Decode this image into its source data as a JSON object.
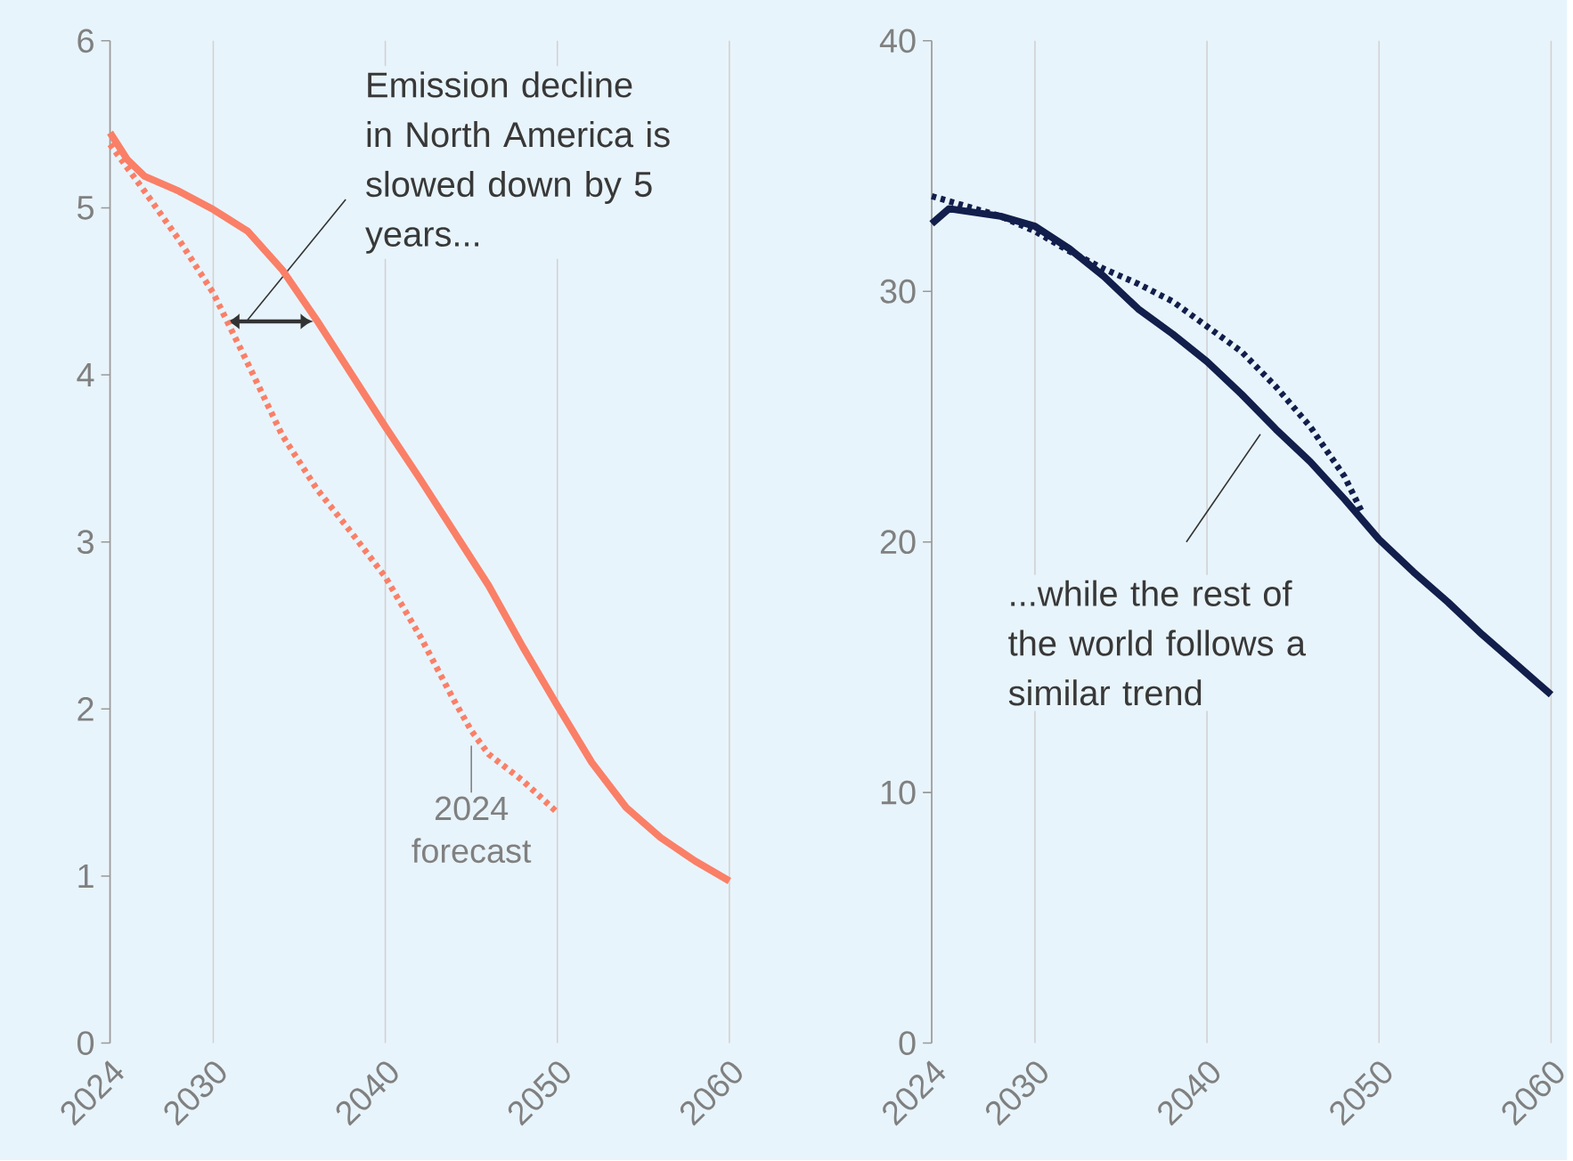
{
  "chart_data": [
    {
      "type": "line",
      "x": [
        2024,
        2025,
        2026,
        2028,
        2030,
        2032,
        2034,
        2036,
        2038,
        2040,
        2042,
        2044,
        2046,
        2048,
        2050,
        2052,
        2054,
        2056,
        2058,
        2060
      ],
      "xlim": [
        2024,
        2060
      ],
      "xticks": [
        2024,
        2030,
        2040,
        2050,
        2060
      ],
      "ylim": [
        0,
        6
      ],
      "yticks": [
        0,
        1,
        2,
        3,
        4,
        5,
        6
      ],
      "grid": "x",
      "annotations": [
        "Emission decline in North America is slowed down by 5 years..."
      ],
      "series": [
        {
          "color": "#fa7f67",
          "line_style": "solid",
          "values": [
            5.45,
            5.29,
            5.19,
            5.1,
            4.99,
            4.86,
            4.63,
            4.33,
            4.01,
            3.69,
            3.38,
            3.06,
            2.74,
            2.37,
            2.02,
            1.68,
            1.41,
            1.23,
            1.09,
            0.97
          ]
        },
        {
          "name": "2024 forecast",
          "color": "#fa7f67",
          "line_style": "dotted",
          "x": [
            2024,
            2026,
            2028,
            2030,
            2032,
            2034,
            2036,
            2038,
            2040,
            2042,
            2044,
            2045,
            2046,
            2048,
            2050
          ],
          "values": [
            5.38,
            5.1,
            4.81,
            4.49,
            4.07,
            3.64,
            3.32,
            3.06,
            2.79,
            2.44,
            2.05,
            1.87,
            1.73,
            1.57,
            1.38
          ]
        }
      ]
    },
    {
      "type": "line",
      "x": [
        2024,
        2025,
        2028,
        2030,
        2032,
        2034,
        2036,
        2038,
        2040,
        2042,
        2044,
        2046,
        2048,
        2050,
        2052,
        2054,
        2056,
        2058,
        2060
      ],
      "xlim": [
        2024,
        2060
      ],
      "xticks": [
        2024,
        2030,
        2040,
        2050,
        2060
      ],
      "ylim": [
        0,
        40
      ],
      "yticks": [
        0,
        10,
        20,
        30,
        40
      ],
      "grid": "x",
      "annotations": [
        "...while the rest of the world  follows a similar trend"
      ],
      "series": [
        {
          "color": "#121e4b",
          "line_style": "solid",
          "values": [
            32.7,
            33.3,
            33.0,
            32.6,
            31.7,
            30.6,
            29.3,
            28.3,
            27.2,
            25.9,
            24.5,
            23.2,
            21.7,
            20.1,
            18.8,
            17.6,
            16.3,
            15.1,
            13.9
          ]
        },
        {
          "color": "#121e4b",
          "line_style": "dotted",
          "x": [
            2024,
            2026,
            2028,
            2030,
            2032,
            2034,
            2036,
            2038,
            2040,
            2042,
            2044,
            2046,
            2048,
            2049
          ],
          "values": [
            33.8,
            33.4,
            33.0,
            32.4,
            31.6,
            30.9,
            30.3,
            29.6,
            28.6,
            27.6,
            26.2,
            24.6,
            22.6,
            21.2
          ]
        }
      ]
    }
  ]
}
